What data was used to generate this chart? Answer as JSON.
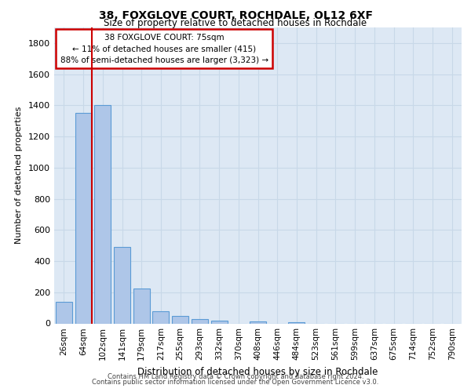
{
  "title1": "38, FOXGLOVE COURT, ROCHDALE, OL12 6XF",
  "title2": "Size of property relative to detached houses in Rochdale",
  "xlabel": "Distribution of detached houses by size in Rochdale",
  "ylabel": "Number of detached properties",
  "categories": [
    "26sqm",
    "64sqm",
    "102sqm",
    "141sqm",
    "179sqm",
    "217sqm",
    "255sqm",
    "293sqm",
    "332sqm",
    "370sqm",
    "408sqm",
    "446sqm",
    "484sqm",
    "523sqm",
    "561sqm",
    "599sqm",
    "637sqm",
    "675sqm",
    "714sqm",
    "752sqm",
    "790sqm"
  ],
  "values": [
    140,
    1350,
    1400,
    490,
    225,
    80,
    50,
    30,
    20,
    0,
    15,
    0,
    10,
    0,
    0,
    0,
    0,
    0,
    0,
    0,
    0
  ],
  "bar_color": "#aec6e8",
  "bar_edge_color": "#5b9bd5",
  "bar_edge_width": 0.8,
  "grid_color": "#c8d8e8",
  "bg_color": "#dde8f4",
  "red_line_x": 1.45,
  "annotation_text": "38 FOXGLOVE COURT: 75sqm\n← 11% of detached houses are smaller (415)\n88% of semi-detached houses are larger (3,323) →",
  "annotation_box_color": "#cc0000",
  "footer1": "Contains HM Land Registry data © Crown copyright and database right 2024.",
  "footer2": "Contains public sector information licensed under the Open Government Licence v3.0.",
  "ylim": [
    0,
    1900
  ],
  "yticks": [
    0,
    200,
    400,
    600,
    800,
    1000,
    1200,
    1400,
    1600,
    1800
  ]
}
